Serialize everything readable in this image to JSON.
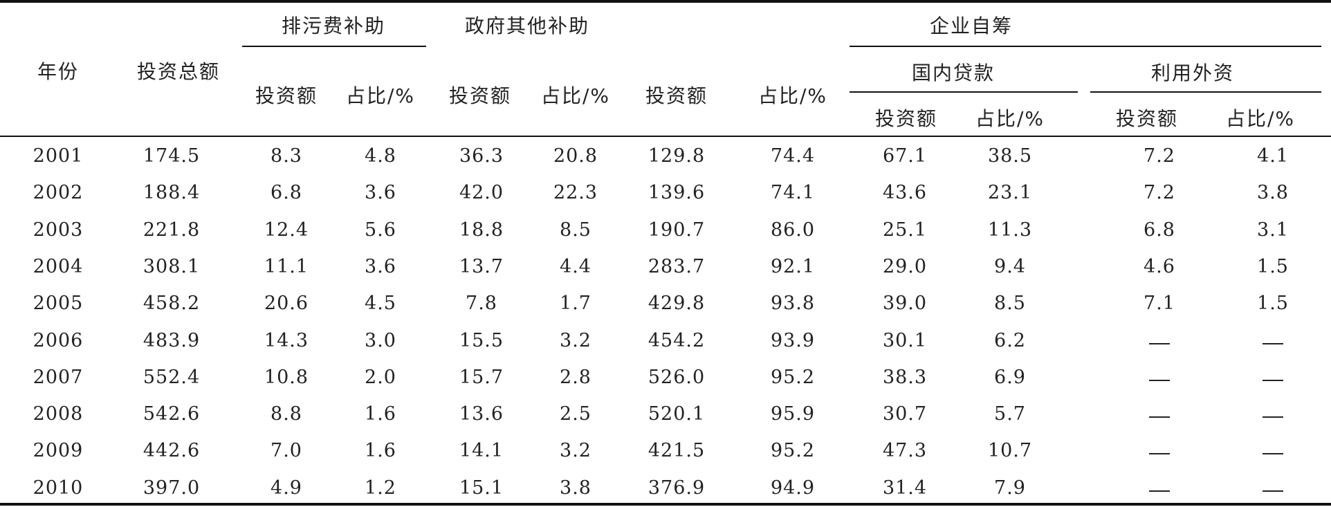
{
  "headers": {
    "year": "年份",
    "total": "投资总额",
    "sewage_fee": "排污费补助",
    "gov_other": "政府其他补助",
    "enterprise": "企业自筹",
    "domestic_loans": "国内贷款",
    "foreign_capital": "利用外资",
    "amount": "投资额",
    "share": "占比/%"
  },
  "rows": [
    {
      "year": "2001",
      "total": "174.5",
      "sf_amt": "8.3",
      "sf_pct": "4.8",
      "go_amt": "36.3",
      "go_pct": "20.8",
      "en_amt": "129.8",
      "en_pct": "74.4",
      "dl_amt": "67.1",
      "dl_pct": "38.5",
      "fc_amt": "7.2",
      "fc_pct": "4.1"
    },
    {
      "year": "2002",
      "total": "188.4",
      "sf_amt": "6.8",
      "sf_pct": "3.6",
      "go_amt": "42.0",
      "go_pct": "22.3",
      "en_amt": "139.6",
      "en_pct": "74.1",
      "dl_amt": "43.6",
      "dl_pct": "23.1",
      "fc_amt": "7.2",
      "fc_pct": "3.8"
    },
    {
      "year": "2003",
      "total": "221.8",
      "sf_amt": "12.4",
      "sf_pct": "5.6",
      "go_amt": "18.8",
      "go_pct": "8.5",
      "en_amt": "190.7",
      "en_pct": "86.0",
      "dl_amt": "25.1",
      "dl_pct": "11.3",
      "fc_amt": "6.8",
      "fc_pct": "3.1"
    },
    {
      "year": "2004",
      "total": "308.1",
      "sf_amt": "11.1",
      "sf_pct": "3.6",
      "go_amt": "13.7",
      "go_pct": "4.4",
      "en_amt": "283.7",
      "en_pct": "92.1",
      "dl_amt": "29.0",
      "dl_pct": "9.4",
      "fc_amt": "4.6",
      "fc_pct": "1.5"
    },
    {
      "year": "2005",
      "total": "458.2",
      "sf_amt": "20.6",
      "sf_pct": "4.5",
      "go_amt": "7.8",
      "go_pct": "1.7",
      "en_amt": "429.8",
      "en_pct": "93.8",
      "dl_amt": "39.0",
      "dl_pct": "8.5",
      "fc_amt": "7.1",
      "fc_pct": "1.5"
    },
    {
      "year": "2006",
      "total": "483.9",
      "sf_amt": "14.3",
      "sf_pct": "3.0",
      "go_amt": "15.5",
      "go_pct": "3.2",
      "en_amt": "454.2",
      "en_pct": "93.9",
      "dl_amt": "30.1",
      "dl_pct": "6.2",
      "fc_amt": null,
      "fc_pct": null
    },
    {
      "year": "2007",
      "total": "552.4",
      "sf_amt": "10.8",
      "sf_pct": "2.0",
      "go_amt": "15.7",
      "go_pct": "2.8",
      "en_amt": "526.0",
      "en_pct": "95.2",
      "dl_amt": "38.3",
      "dl_pct": "6.9",
      "fc_amt": null,
      "fc_pct": null
    },
    {
      "year": "2008",
      "total": "542.6",
      "sf_amt": "8.8",
      "sf_pct": "1.6",
      "go_amt": "13.6",
      "go_pct": "2.5",
      "en_amt": "520.1",
      "en_pct": "95.9",
      "dl_amt": "30.7",
      "dl_pct": "5.7",
      "fc_amt": null,
      "fc_pct": null
    },
    {
      "year": "2009",
      "total": "442.6",
      "sf_amt": "7.0",
      "sf_pct": "1.6",
      "go_amt": "14.1",
      "go_pct": "3.2",
      "en_amt": "421.5",
      "en_pct": "95.2",
      "dl_amt": "47.3",
      "dl_pct": "10.7",
      "fc_amt": null,
      "fc_pct": null
    },
    {
      "year": "2010",
      "total": "397.0",
      "sf_amt": "4.9",
      "sf_pct": "1.2",
      "go_amt": "15.1",
      "go_pct": "3.8",
      "en_amt": "376.9",
      "en_pct": "94.9",
      "dl_amt": "31.4",
      "dl_pct": "7.9",
      "fc_amt": null,
      "fc_pct": null
    }
  ]
}
